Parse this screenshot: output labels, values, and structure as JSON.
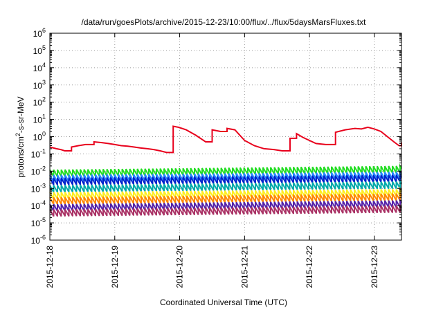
{
  "chart_data": {
    "type": "line",
    "title": "/data/run/goesPlots/archive/2015-12-23/10:00/flux/../flux/5daysMarsFluxes.txt",
    "xlabel": "Coordinated Universal Time (UTC)",
    "ylabel": {
      "base": "protons/cm",
      "sup": "2",
      "rest": "-s-sr-MeV"
    },
    "yscale": "log",
    "ylim": [
      1e-06,
      1000000.0
    ],
    "xlim": [
      "2015-12-18T00:00",
      "2015-12-23T10:00"
    ],
    "x_ticks": [
      "2015-12-18",
      "2015-12-19",
      "2015-12-20",
      "2015-12-21",
      "2015-12-22",
      "2015-12-23"
    ],
    "y_ticks": [
      {
        "base": "10",
        "exp": "-6"
      },
      {
        "base": "10",
        "exp": "-5"
      },
      {
        "base": "10",
        "exp": "-4"
      },
      {
        "base": "10",
        "exp": "-3"
      },
      {
        "base": "10",
        "exp": "-2"
      },
      {
        "base": "10",
        "exp": "-1"
      },
      {
        "base": "10",
        "exp": "0"
      },
      {
        "base": "10",
        "exp": "1"
      },
      {
        "base": "10",
        "exp": "2"
      },
      {
        "base": "10",
        "exp": "3"
      },
      {
        "base": "10",
        "exp": "4"
      },
      {
        "base": "10",
        "exp": "5"
      },
      {
        "base": "10",
        "exp": "6"
      }
    ],
    "grid": true,
    "series": [
      {
        "color": "#e8001c",
        "sawtooth": false,
        "x": [
          "2015-12-18T00:00",
          "2015-12-18T02:24",
          "2015-12-18T04:00",
          "2015-12-18T05:31",
          "2015-12-18T08:00",
          "2015-12-18T10:34",
          "2015-12-18T13:12",
          "2015-12-18T16:19",
          "2015-12-18T19:12",
          "2015-12-18T21:36",
          "2015-12-19T00:00",
          "2015-12-19T02:24",
          "2015-12-19T04:48",
          "2015-12-19T07:12",
          "2015-12-19T09:36",
          "2015-12-19T12:00",
          "2015-12-19T14:24",
          "2015-12-19T16:48",
          "2015-12-19T19:12",
          "2015-12-19T21:36",
          "2015-12-19T23:31",
          "2015-12-20T02:24",
          "2015-12-20T06:00",
          "2015-12-20T09:36",
          "2015-12-20T12:00",
          "2015-12-20T15:07",
          "2015-12-20T17:31",
          "2015-12-20T20:24",
          "2015-12-21T00:00",
          "2015-12-21T03:36",
          "2015-12-21T07:12",
          "2015-12-21T10:48",
          "2015-12-21T13:55",
          "2015-12-21T16:48",
          "2015-12-21T19:12",
          "2015-12-21T21:36",
          "2015-12-22T00:00",
          "2015-12-22T02:24",
          "2015-12-22T06:00",
          "2015-12-22T09:36",
          "2015-12-22T13:12",
          "2015-12-22T16:48",
          "2015-12-22T19:12",
          "2015-12-22T21:36",
          "2015-12-23T00:00",
          "2015-12-23T02:24",
          "2015-12-23T04:48",
          "2015-12-23T07:12",
          "2015-12-23T09:07",
          "2015-12-23T10:00"
        ],
        "y": [
          0.25,
          0.2,
          0.18,
          0.15,
          0.25,
          0.3,
          0.35,
          0.5,
          0.45,
          0.4,
          0.35,
          0.3,
          0.28,
          0.25,
          0.22,
          0.2,
          0.18,
          0.15,
          0.12,
          4.0,
          3.5,
          2.5,
          1.2,
          0.5,
          2.5,
          2.0,
          3.0,
          2.5,
          0.6,
          0.3,
          0.2,
          0.18,
          0.15,
          0.8,
          1.5,
          0.9,
          0.6,
          0.4,
          0.35,
          1.8,
          2.5,
          3.0,
          2.8,
          3.5,
          2.8,
          2.0,
          1.0,
          0.5,
          0.3,
          0.45
        ]
      },
      {
        "color": "#22dd22",
        "sawtooth": true,
        "x": [
          "2015-12-18T00:00",
          "2015-12-23T10:00"
        ],
        "y": [
          0.012,
          0.02
        ]
      },
      {
        "color": "#2288ff",
        "sawtooth": true,
        "x": [
          "2015-12-18T00:00",
          "2015-12-23T10:00"
        ],
        "y": [
          0.006,
          0.009
        ]
      },
      {
        "color": "#0022cc",
        "sawtooth": true,
        "x": [
          "2015-12-18T00:00",
          "2015-12-23T10:00"
        ],
        "y": [
          0.004,
          0.006
        ]
      },
      {
        "color": "#00aaaa",
        "sawtooth": true,
        "x": [
          "2015-12-18T00:00",
          "2015-12-23T10:00"
        ],
        "y": [
          0.0015,
          0.0025
        ]
      },
      {
        "color": "#ffee22",
        "sawtooth": true,
        "x": [
          "2015-12-18T00:00",
          "2015-12-23T10:00"
        ],
        "y": [
          0.0006,
          0.0009
        ]
      },
      {
        "color": "#ff8800",
        "sawtooth": true,
        "x": [
          "2015-12-18T00:00",
          "2015-12-23T10:00"
        ],
        "y": [
          0.0003,
          0.0005
        ]
      },
      {
        "color": "#5522aa",
        "sawtooth": true,
        "x": [
          "2015-12-18T00:00",
          "2015-12-23T10:00"
        ],
        "y": [
          0.00012,
          0.0002
        ]
      },
      {
        "color": "#aa3366",
        "sawtooth": true,
        "x": [
          "2015-12-18T00:00",
          "2015-12-23T10:00"
        ],
        "y": [
          6e-05,
          0.0001
        ]
      }
    ]
  }
}
